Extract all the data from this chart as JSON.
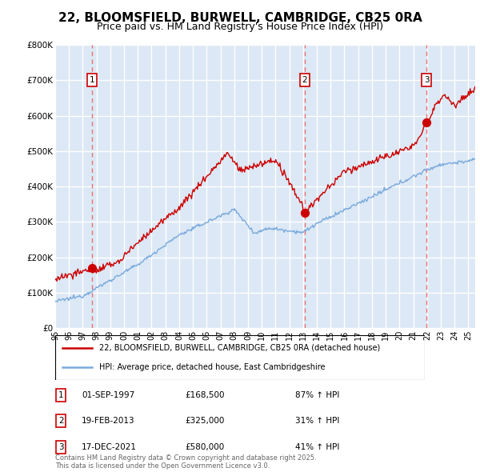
{
  "title": "22, BLOOMSFIELD, BURWELL, CAMBRIDGE, CB25 0RA",
  "subtitle": "Price paid vs. HM Land Registry's House Price Index (HPI)",
  "legend_line1": "22, BLOOMSFIELD, BURWELL, CAMBRIDGE, CB25 0RA (detached house)",
  "legend_line2": "HPI: Average price, detached house, East Cambridgeshire",
  "footer": "Contains HM Land Registry data © Crown copyright and database right 2025.\nThis data is licensed under the Open Government Licence v3.0.",
  "sale_points": [
    {
      "date": 1997.67,
      "price": 168500,
      "label": "1"
    },
    {
      "date": 2013.12,
      "price": 325000,
      "label": "2"
    },
    {
      "date": 2021.96,
      "price": 580000,
      "label": "3"
    }
  ],
  "sale_table": [
    {
      "num": "1",
      "date": "01-SEP-1997",
      "price": "£168,500",
      "pct": "87% ↑ HPI"
    },
    {
      "num": "2",
      "date": "19-FEB-2013",
      "price": "£325,000",
      "pct": "31% ↑ HPI"
    },
    {
      "num": "3",
      "date": "17-DEC-2021",
      "price": "£580,000",
      "pct": "41% ↑ HPI"
    }
  ],
  "xmin": 1995.0,
  "xmax": 2025.5,
  "ymin": 0,
  "ymax": 800000,
  "yticks": [
    0,
    100000,
    200000,
    300000,
    400000,
    500000,
    600000,
    700000,
    800000
  ],
  "ytick_labels": [
    "£0",
    "£100K",
    "£200K",
    "£300K",
    "£400K",
    "£500K",
    "£600K",
    "£700K",
    "£800K"
  ],
  "plot_bg_color": "#dce8f5",
  "grid_color": "#ffffff",
  "line_color_red": "#cc0000",
  "line_color_blue": "#7aaadd",
  "sale_marker_color": "#cc0000",
  "dashed_line_color": "#e87070",
  "box_color": "#cc0000",
  "title_fontsize": 11,
  "subtitle_fontsize": 9
}
